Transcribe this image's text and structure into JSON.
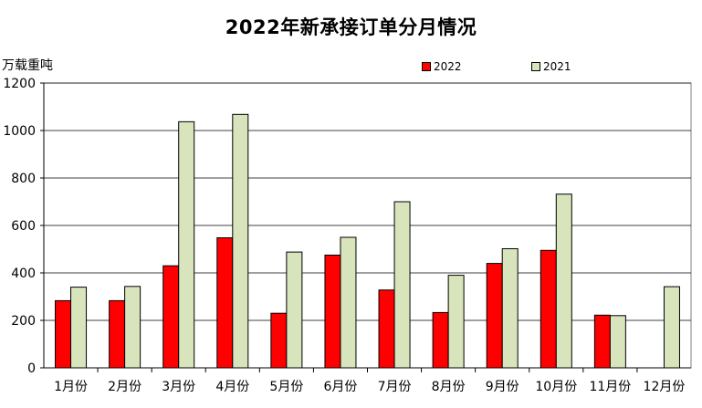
{
  "chart_data": {
    "type": "bar",
    "title": "2022年新承接订单分月情况",
    "ylabel": "万载重吨",
    "ylim": [
      0,
      1200
    ],
    "yticks": [
      0,
      200,
      400,
      600,
      800,
      1000,
      1200
    ],
    "grid": true,
    "legend_position": "top-right",
    "categories": [
      "1月份",
      "2月份",
      "3月份",
      "4月份",
      "5月份",
      "6月份",
      "7月份",
      "8月份",
      "9月份",
      "10月份",
      "11月份",
      "12月份"
    ],
    "series": [
      {
        "name": "2022",
        "color": "#ff0000",
        "values": [
          283,
          283,
          430,
          548,
          230,
          475,
          328,
          233,
          440,
          495,
          222,
          null
        ]
      },
      {
        "name": "2021",
        "color": "#d8e4bc",
        "values": [
          340,
          343,
          1037,
          1068,
          488,
          550,
          700,
          390,
          502,
          732,
          220,
          342
        ]
      }
    ]
  }
}
